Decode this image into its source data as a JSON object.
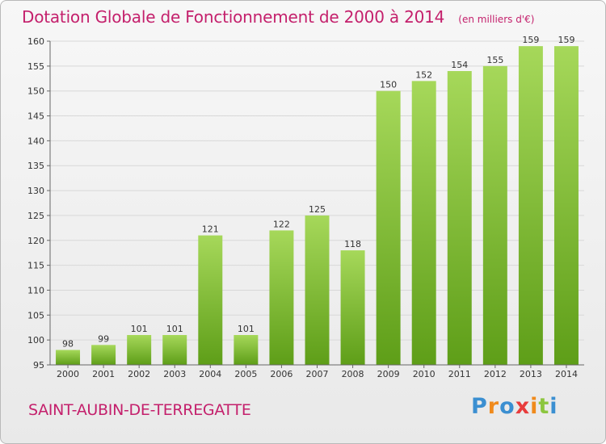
{
  "header": {
    "title": "Dotation Globale de Fonctionnement de 2000 à 2014",
    "subtitle": "(en milliers d'€)"
  },
  "footer": {
    "commune": "SAINT-AUBIN-DE-TERREGATTE",
    "logo_letters": [
      "P",
      "r",
      "o",
      "x",
      "i",
      "t",
      "i"
    ],
    "logo_colors": [
      "#3b8fd1",
      "#f08a1c",
      "#3b8fd1",
      "#e83c3c",
      "#f08a1c",
      "#8cc63f",
      "#3b8fd1"
    ]
  },
  "colors": {
    "title": "#c4206c",
    "bar_light": "#a6d85a",
    "bar_dark": "#5e9e18"
  },
  "chart_data": {
    "type": "bar",
    "categories": [
      "2000",
      "2001",
      "2002",
      "2003",
      "2004",
      "2005",
      "2006",
      "2007",
      "2008",
      "2009",
      "2010",
      "2011",
      "2012",
      "2013",
      "2014"
    ],
    "values": [
      98,
      99,
      101,
      101,
      121,
      101,
      122,
      125,
      118,
      150,
      152,
      154,
      155,
      159,
      159
    ],
    "ylim": [
      95,
      160
    ],
    "yticks": [
      95,
      100,
      105,
      110,
      115,
      120,
      125,
      130,
      135,
      140,
      145,
      150,
      155,
      160
    ],
    "xlabel": "",
    "ylabel": "",
    "grid": true
  }
}
